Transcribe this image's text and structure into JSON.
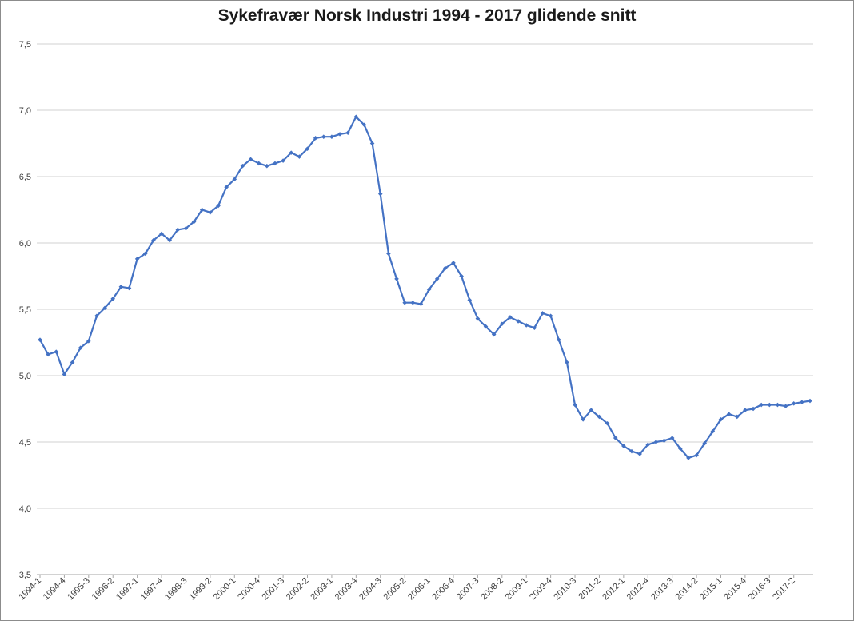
{
  "chart_data": {
    "type": "line",
    "title": "Sykefravær Norsk Industri 1994 - 2017 glidende snitt",
    "xlabel": "",
    "ylabel": "",
    "ylim": [
      3.5,
      7.5
    ],
    "grid": true,
    "legend": "none",
    "line_color": "#4472c4",
    "y_ticks": [
      "3,5",
      "4,0",
      "4,5",
      "5,0",
      "5,5",
      "6,0",
      "6,5",
      "7,0",
      "7,5"
    ],
    "x_tick_labels": [
      "1994-1",
      "1994-4",
      "1995-3",
      "1996-2",
      "1997-1",
      "1997-4",
      "1998-3",
      "1999-2",
      "2000-1",
      "2000-4",
      "2001-3",
      "2002-2",
      "2003-1",
      "2003-4",
      "2004-3",
      "2005-2",
      "2006-1",
      "2006-4",
      "2007-3",
      "2008-2",
      "2009-1",
      "2009-4",
      "2010-3",
      "2011-2",
      "2012-1",
      "2012-4",
      "2013-3",
      "2014-2",
      "2015-1",
      "2015-4",
      "2016-3",
      "2017-2"
    ],
    "x": [
      "1994-1",
      "1994-2",
      "1994-3",
      "1994-4",
      "1995-1",
      "1995-2",
      "1995-3",
      "1995-4",
      "1996-1",
      "1996-2",
      "1996-3",
      "1996-4",
      "1997-1",
      "1997-2",
      "1997-3",
      "1997-4",
      "1998-1",
      "1998-2",
      "1998-3",
      "1998-4",
      "1999-1",
      "1999-2",
      "1999-3",
      "1999-4",
      "2000-1",
      "2000-2",
      "2000-3",
      "2000-4",
      "2001-1",
      "2001-2",
      "2001-3",
      "2001-4",
      "2002-1",
      "2002-2",
      "2002-3",
      "2002-4",
      "2003-1",
      "2003-2",
      "2003-3",
      "2003-4",
      "2004-1",
      "2004-2",
      "2004-3",
      "2004-4",
      "2005-1",
      "2005-2",
      "2005-3",
      "2005-4",
      "2006-1",
      "2006-2",
      "2006-3",
      "2006-4",
      "2007-1",
      "2007-2",
      "2007-3",
      "2007-4",
      "2008-1",
      "2008-2",
      "2008-3",
      "2008-4",
      "2009-1",
      "2009-2",
      "2009-3",
      "2009-4",
      "2010-1",
      "2010-2",
      "2010-3",
      "2010-4",
      "2011-1",
      "2011-2",
      "2011-3",
      "2011-4",
      "2012-1",
      "2012-2",
      "2012-3",
      "2012-4",
      "2013-1",
      "2013-2",
      "2013-3",
      "2013-4",
      "2014-1",
      "2014-2",
      "2014-3",
      "2014-4",
      "2015-1",
      "2015-2",
      "2015-3",
      "2015-4",
      "2016-1",
      "2016-2",
      "2016-3",
      "2016-4",
      "2017-1",
      "2017-2",
      "2017-3",
      "2017-4"
    ],
    "series": [
      {
        "values": [
          5.27,
          5.16,
          5.18,
          5.01,
          5.1,
          5.21,
          5.26,
          5.45,
          5.51,
          5.58,
          5.67,
          5.66,
          5.88,
          5.92,
          6.02,
          6.07,
          6.02,
          6.1,
          6.11,
          6.16,
          6.25,
          6.23,
          6.28,
          6.42,
          6.48,
          6.58,
          6.63,
          6.6,
          6.58,
          6.6,
          6.62,
          6.68,
          6.65,
          6.71,
          6.79,
          6.8,
          6.8,
          6.82,
          6.83,
          6.95,
          6.89,
          6.75,
          6.37,
          5.92,
          5.73,
          5.55,
          5.55,
          5.54,
          5.65,
          5.73,
          5.81,
          5.85,
          5.75,
          5.57,
          5.43,
          5.37,
          5.31,
          5.39,
          5.44,
          5.41,
          5.38,
          5.36,
          5.47,
          5.45,
          5.27,
          5.1,
          4.78,
          4.67,
          4.74,
          4.69,
          4.64,
          4.53,
          4.47,
          4.43,
          4.41,
          4.48,
          4.5,
          4.51,
          4.53,
          4.45,
          4.38,
          4.4,
          4.49,
          4.58,
          4.67,
          4.71,
          4.69,
          4.74,
          4.75,
          4.78,
          4.78,
          4.78,
          4.77,
          4.79,
          4.8,
          4.81
        ]
      }
    ]
  }
}
